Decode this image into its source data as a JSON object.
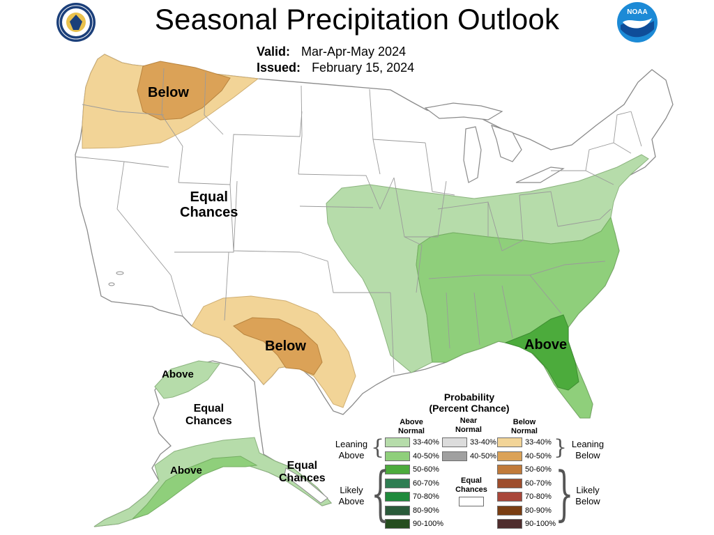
{
  "title": "Seasonal Precipitation Outlook",
  "valid_label": "Valid:",
  "valid_value": "Mar-Apr-May 2024",
  "issued_label": "Issued:",
  "issued_value": "February 15, 2024",
  "logos": {
    "left": {
      "icon": "doc-seal-icon",
      "text": "DEPARTMENT OF COMMERCE"
    },
    "right": {
      "icon": "noaa-logo-icon",
      "text": "NOAA"
    }
  },
  "map_labels": {
    "below_nw": "Below",
    "below_sw": "Below",
    "above_se": "Above",
    "equal_chances_west": [
      "Equal",
      "Chances"
    ],
    "alaska_above_north": "Above",
    "alaska_equal_chances": [
      "Equal",
      "Chances"
    ],
    "alaska_above_south": "Above",
    "alaska_equal_chances_se": [
      "Equal",
      "Chances"
    ]
  },
  "colors": {
    "above_33_40": "#b6dcaa",
    "above_40_50": "#8fcf7b",
    "above_50_60": "#4cab3c",
    "below_33_40": "#f2d497",
    "below_40_50": "#dba257",
    "state_border": "#9a9a9a"
  },
  "legend": {
    "title": [
      "Probability",
      "(Percent Chance)"
    ],
    "col_heads": {
      "above": [
        "Above",
        "Normal"
      ],
      "near": [
        "Near",
        "Normal"
      ],
      "below": [
        "Below",
        "Normal"
      ]
    },
    "above": [
      {
        "label": "33-40%",
        "color": "#b6dcaa"
      },
      {
        "label": "40-50%",
        "color": "#8fcf7b"
      },
      {
        "label": "50-60%",
        "color": "#4cab3c"
      },
      {
        "label": "60-70%",
        "color": "#2e7d52"
      },
      {
        "label": "70-80%",
        "color": "#1f8a3c"
      },
      {
        "label": "80-90%",
        "color": "#2a5a3a"
      },
      {
        "label": "90-100%",
        "color": "#254d1e"
      }
    ],
    "near": [
      {
        "label": "33-40%",
        "color": "#dcdcdc"
      },
      {
        "label": "40-50%",
        "color": "#a0a0a0"
      }
    ],
    "below": [
      {
        "label": "33-40%",
        "color": "#f2d497"
      },
      {
        "label": "40-50%",
        "color": "#dba257"
      },
      {
        "label": "50-60%",
        "color": "#c07a3a"
      },
      {
        "label": "60-70%",
        "color": "#9e4d2c"
      },
      {
        "label": "70-80%",
        "color": "#a9473a"
      },
      {
        "label": "80-90%",
        "color": "#7a3e13"
      },
      {
        "label": "90-100%",
        "color": "#4f2d2d"
      }
    ],
    "equal_chances": [
      "Equal",
      "Chances"
    ],
    "leaning_above": [
      "Leaning",
      "Above"
    ],
    "likely_above": [
      "Likely",
      "Above"
    ],
    "leaning_below": [
      "Leaning",
      "Below"
    ],
    "likely_below": [
      "Likely",
      "Below"
    ]
  }
}
